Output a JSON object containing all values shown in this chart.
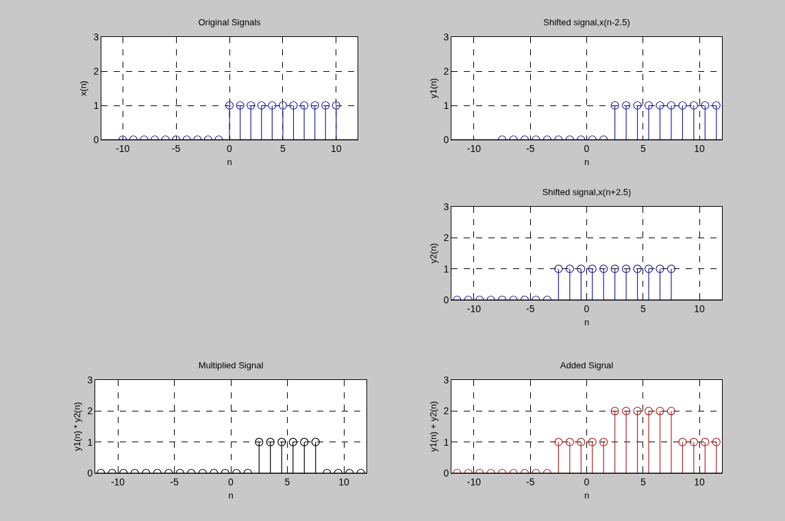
{
  "chart_data": [
    {
      "type": "lollipop",
      "title": "Original Signals",
      "xlabel": "n",
      "ylabel": "x(n)",
      "x": [
        -10,
        -9,
        -8,
        -7,
        -6,
        -5,
        -4,
        -3,
        -2,
        -1,
        0,
        1,
        2,
        3,
        4,
        5,
        6,
        7,
        8,
        9,
        10
      ],
      "values": [
        0,
        0,
        0,
        0,
        0,
        0,
        0,
        0,
        0,
        0,
        1,
        1,
        1,
        1,
        1,
        1,
        1,
        1,
        1,
        1,
        1
      ],
      "color": "#2222a0",
      "xlim": [
        -12,
        12
      ],
      "xticks": [
        -10,
        -5,
        0,
        5,
        10
      ],
      "ylim": [
        0,
        3
      ],
      "yticks": [
        0,
        1,
        2,
        3
      ],
      "grid": true,
      "marker": "circle"
    },
    {
      "type": "lollipop",
      "title": "Shifted signal,x(n-2.5)",
      "xlabel": "n",
      "ylabel": "y1(n)",
      "x": [
        -7.5,
        -6.5,
        -5.5,
        -4.5,
        -3.5,
        -2.5,
        -1.5,
        -0.5,
        0.5,
        1.5,
        2.5,
        3.5,
        4.5,
        5.5,
        6.5,
        7.5,
        8.5,
        9.5,
        10.5,
        11.5
      ],
      "values": [
        0,
        0,
        0,
        0,
        0,
        0,
        0,
        0,
        0,
        0,
        1,
        1,
        1,
        1,
        1,
        1,
        1,
        1,
        1,
        1
      ],
      "color": "#2222a0",
      "xlim": [
        -12,
        12
      ],
      "xticks": [
        -10,
        -5,
        0,
        5,
        10
      ],
      "ylim": [
        0,
        3
      ],
      "yticks": [
        0,
        1,
        2,
        3
      ],
      "grid": true,
      "marker": "circle"
    },
    {
      "type": "lollipop",
      "title": "Shifted signal,x(n+2.5)",
      "xlabel": "n",
      "ylabel": "y2(n)",
      "x": [
        -11.5,
        -10.5,
        -9.5,
        -8.5,
        -7.5,
        -6.5,
        -5.5,
        -4.5,
        -3.5,
        -2.5,
        -1.5,
        -0.5,
        0.5,
        1.5,
        2.5,
        3.5,
        4.5,
        5.5,
        6.5,
        7.5
      ],
      "values": [
        0,
        0,
        0,
        0,
        0,
        0,
        0,
        0,
        0,
        1,
        1,
        1,
        1,
        1,
        1,
        1,
        1,
        1,
        1,
        1
      ],
      "color": "#2222a0",
      "xlim": [
        -12,
        12
      ],
      "xticks": [
        -10,
        -5,
        0,
        5,
        10
      ],
      "ylim": [
        0,
        3
      ],
      "yticks": [
        0,
        1,
        2,
        3
      ],
      "grid": true,
      "marker": "circle"
    },
    {
      "type": "lollipop",
      "title": "Multiplied Signal",
      "xlabel": "n",
      "ylabel": "y1(n) * y2(n)",
      "x": [
        -11.5,
        -10.5,
        -9.5,
        -8.5,
        -7.5,
        -6.5,
        -5.5,
        -4.5,
        -3.5,
        -2.5,
        -1.5,
        -0.5,
        0.5,
        1.5,
        2.5,
        3.5,
        4.5,
        5.5,
        6.5,
        7.5,
        8.5,
        9.5,
        10.5,
        11.5
      ],
      "values": [
        0,
        0,
        0,
        0,
        0,
        0,
        0,
        0,
        0,
        0,
        0,
        0,
        0,
        0,
        1,
        1,
        1,
        1,
        1,
        1,
        0,
        0,
        0,
        0
      ],
      "color": "#000000",
      "xlim": [
        -12,
        12
      ],
      "xticks": [
        -10,
        -5,
        0,
        5,
        10
      ],
      "ylim": [
        0,
        3
      ],
      "yticks": [
        0,
        1,
        2,
        3
      ],
      "grid": true,
      "marker": "circle"
    },
    {
      "type": "lollipop",
      "title": "Added Signal",
      "xlabel": "n",
      "ylabel": "y1(n) + y2(n)",
      "x": [
        -11.5,
        -10.5,
        -9.5,
        -8.5,
        -7.5,
        -6.5,
        -5.5,
        -4.5,
        -3.5,
        -2.5,
        -1.5,
        -0.5,
        0.5,
        1.5,
        2.5,
        3.5,
        4.5,
        5.5,
        6.5,
        7.5,
        8.5,
        9.5,
        10.5,
        11.5
      ],
      "values": [
        0,
        0,
        0,
        0,
        0,
        0,
        0,
        0,
        0,
        1,
        1,
        1,
        1,
        1,
        2,
        2,
        2,
        2,
        2,
        2,
        1,
        1,
        1,
        1
      ],
      "color": "#b02828",
      "xlim": [
        -12,
        12
      ],
      "xticks": [
        -10,
        -5,
        0,
        5,
        10
      ],
      "ylim": [
        0,
        3
      ],
      "yticks": [
        0,
        1,
        2,
        3
      ],
      "grid": true,
      "marker": "circle"
    }
  ]
}
